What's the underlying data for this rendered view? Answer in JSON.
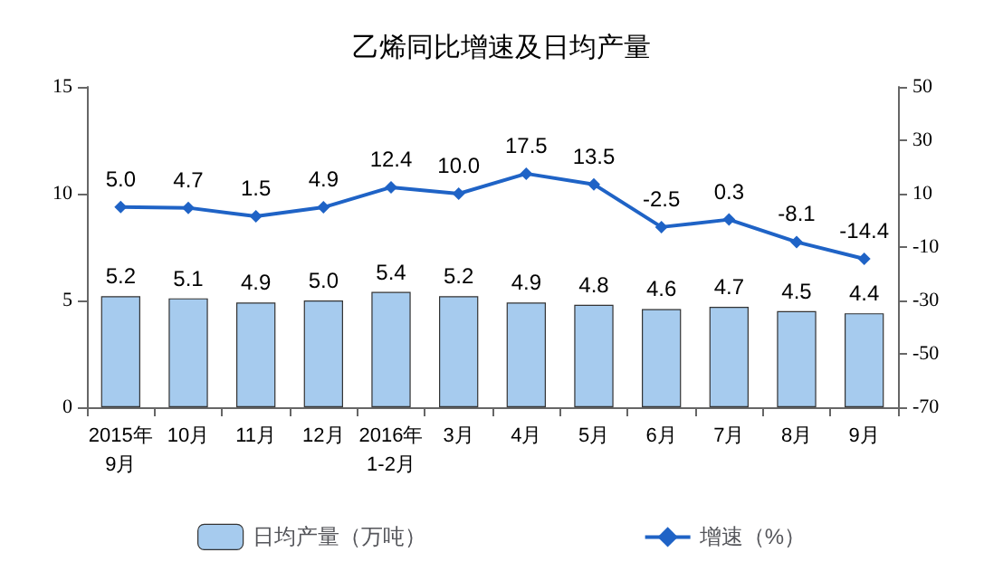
{
  "chart_data": {
    "type": "bar",
    "title": "乙烯同比增速及日均产量",
    "categories": [
      "2015年\n9月",
      "10月",
      "11月",
      "12月",
      "2016年\n1-2月",
      "3月",
      "4月",
      "5月",
      "6月",
      "7月",
      "8月",
      "9月"
    ],
    "series": [
      {
        "name": "日均产量（万吨）",
        "color": "#a6cbee",
        "values": [
          5.2,
          5.1,
          4.9,
          5.0,
          5.4,
          5.2,
          4.9,
          4.8,
          4.6,
          4.7,
          4.5,
          4.4
        ],
        "value_labels": [
          "5.2",
          "5.1",
          "4.9",
          "5.0",
          "5.4",
          "5.2",
          "4.9",
          "4.8",
          "4.6",
          "4.7",
          "4.5",
          "4.4"
        ]
      },
      {
        "name": "增速（%）",
        "type": "line",
        "axis": "y2",
        "color": "#1f63c6",
        "values": [
          5.0,
          4.7,
          1.5,
          4.9,
          12.4,
          10.0,
          17.5,
          13.5,
          -2.5,
          0.3,
          -8.1,
          -14.4
        ],
        "value_labels": [
          "5.0",
          "4.7",
          "1.5",
          "4.9",
          "12.4",
          "10.0",
          "17.5",
          "13.5",
          "-2.5",
          "0.3",
          "-8.1",
          "-14.4"
        ]
      }
    ],
    "ylim": [
      0,
      15
    ],
    "yticks": [
      0,
      5,
      10,
      15
    ],
    "y2lim": [
      -70,
      50
    ],
    "y2ticks": [
      -70,
      -50,
      -30,
      -10,
      10,
      30,
      50
    ],
    "grid": false,
    "legend": "bottom",
    "marker": "diamond"
  }
}
